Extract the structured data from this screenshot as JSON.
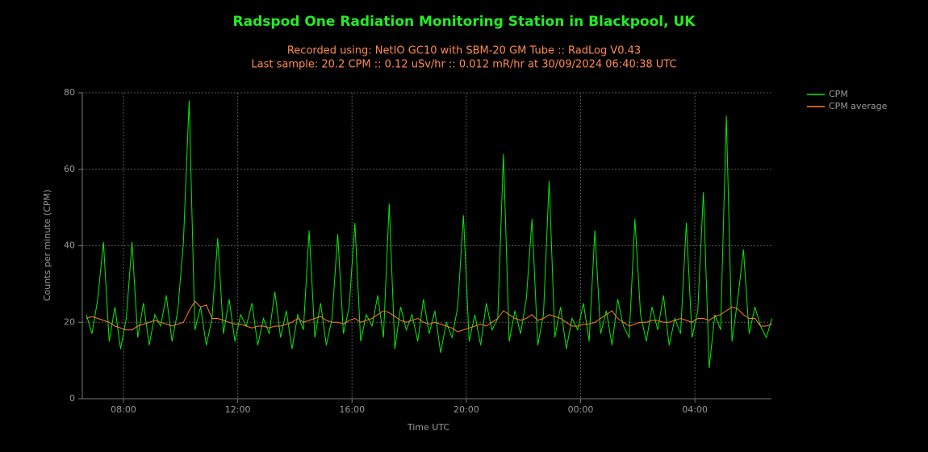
{
  "chart_data": {
    "type": "line",
    "title": "Radspod One Radiation Monitoring Station in Blackpool, UK",
    "subtitle": [
      "Recorded using: NetIO GC10 with SBM-20 GM Tube :: RadLog V0.43",
      "Last sample: 20.2 CPM :: 0.12 uSv/hr :: 0.012 mR/hr at 30/09/2024 06:40:38 UTC"
    ],
    "x_label": "Time UTC",
    "y_label": "Counts per minute (CPM)",
    "xlim": [
      6.56,
      30.68
    ],
    "ylim": [
      0,
      80
    ],
    "xticks": [
      {
        "value": 8,
        "label": "08:00"
      },
      {
        "value": 12,
        "label": "12:00"
      },
      {
        "value": 16,
        "label": "16:00"
      },
      {
        "value": 20,
        "label": "20:00"
      },
      {
        "value": 24,
        "label": "00:00"
      },
      {
        "value": 28,
        "label": "04:00"
      }
    ],
    "yticks": [
      0,
      20,
      40,
      60,
      80
    ],
    "grid": true,
    "legend": "top-right",
    "x": [
      6.7,
      6.9,
      7.1,
      7.3,
      7.5,
      7.7,
      7.9,
      8.1,
      8.3,
      8.5,
      8.7,
      8.9,
      9.1,
      9.3,
      9.5,
      9.7,
      9.9,
      10.1,
      10.3,
      10.5,
      10.7,
      10.9,
      11.1,
      11.3,
      11.5,
      11.7,
      11.9,
      12.1,
      12.3,
      12.5,
      12.7,
      12.9,
      13.1,
      13.3,
      13.5,
      13.7,
      13.9,
      14.1,
      14.3,
      14.5,
      14.7,
      14.9,
      15.1,
      15.3,
      15.5,
      15.7,
      15.9,
      16.1,
      16.3,
      16.5,
      16.7,
      16.9,
      17.1,
      17.3,
      17.5,
      17.7,
      17.9,
      18.1,
      18.3,
      18.5,
      18.7,
      18.9,
      19.1,
      19.3,
      19.5,
      19.7,
      19.9,
      20.1,
      20.3,
      20.5,
      20.7,
      20.9,
      21.1,
      21.3,
      21.5,
      21.7,
      21.9,
      22.1,
      22.3,
      22.5,
      22.7,
      22.9,
      23.1,
      23.3,
      23.5,
      23.7,
      23.9,
      24.1,
      24.3,
      24.5,
      24.7,
      24.9,
      25.1,
      25.3,
      25.5,
      25.7,
      25.9,
      26.1,
      26.3,
      26.5,
      26.7,
      26.9,
      27.1,
      27.3,
      27.5,
      27.7,
      27.9,
      28.1,
      28.3,
      28.5,
      28.7,
      28.9,
      29.1,
      29.3,
      29.5,
      29.7,
      29.9,
      30.1,
      30.3,
      30.5,
      30.7
    ],
    "series": [
      {
        "name": "CPM",
        "color": "#00ee00",
        "values": [
          22,
          17,
          26,
          41,
          15,
          24,
          13,
          21,
          41,
          16,
          25,
          14,
          22,
          19,
          27,
          15,
          23,
          41,
          78,
          18,
          24,
          14,
          21,
          42,
          17,
          26,
          15,
          22,
          19,
          25,
          14,
          21,
          17,
          28,
          16,
          23,
          13,
          22,
          18,
          44,
          16,
          25,
          14,
          21,
          43,
          17,
          24,
          46,
          15,
          22,
          19,
          27,
          16,
          51,
          13,
          24,
          18,
          22,
          15,
          26,
          17,
          23,
          12,
          20,
          16,
          24,
          48,
          15,
          22,
          14,
          25,
          18,
          21,
          64,
          15,
          23,
          17,
          26,
          47,
          14,
          22,
          57,
          16,
          24,
          13,
          21,
          18,
          25,
          15,
          44,
          17,
          23,
          14,
          26,
          19,
          16,
          47,
          22,
          15,
          24,
          18,
          27,
          14,
          21,
          17,
          46,
          16,
          23,
          54,
          8,
          22,
          18,
          74,
          15,
          26,
          39,
          17,
          24,
          19,
          16,
          21
        ]
      },
      {
        "name": "CPM average",
        "color": "#ff7f27",
        "values": [
          21,
          21.5,
          21,
          20.5,
          20,
          19,
          18.5,
          18,
          18,
          19,
          19.5,
          20,
          20.5,
          20,
          19.5,
          19,
          19.5,
          20,
          23,
          25.5,
          24,
          24.5,
          21,
          21,
          20.5,
          20,
          19.5,
          19.5,
          19,
          18.5,
          19,
          19,
          18.5,
          19,
          19,
          19.5,
          20,
          21,
          20,
          20.5,
          21,
          21.5,
          20.5,
          20,
          20,
          19.5,
          20.5,
          21,
          20,
          20.5,
          21,
          22,
          23,
          22.5,
          21.5,
          20.5,
          20,
          20.5,
          21,
          20,
          19.5,
          20,
          19.5,
          19,
          18.5,
          17.5,
          18,
          18.5,
          19,
          19.5,
          19,
          20,
          21,
          23,
          22,
          21,
          20.5,
          21,
          22,
          20.5,
          21,
          22,
          21.5,
          21,
          20,
          19,
          19,
          19.5,
          19.5,
          20,
          21,
          22,
          23,
          21,
          20,
          19,
          19.5,
          20,
          20,
          20.5,
          20.5,
          20,
          20,
          20.5,
          21,
          20.5,
          20,
          21,
          21,
          20.5,
          21.5,
          22,
          23,
          24,
          23.5,
          22,
          21,
          21,
          19,
          19,
          19.5
        ]
      }
    ]
  }
}
